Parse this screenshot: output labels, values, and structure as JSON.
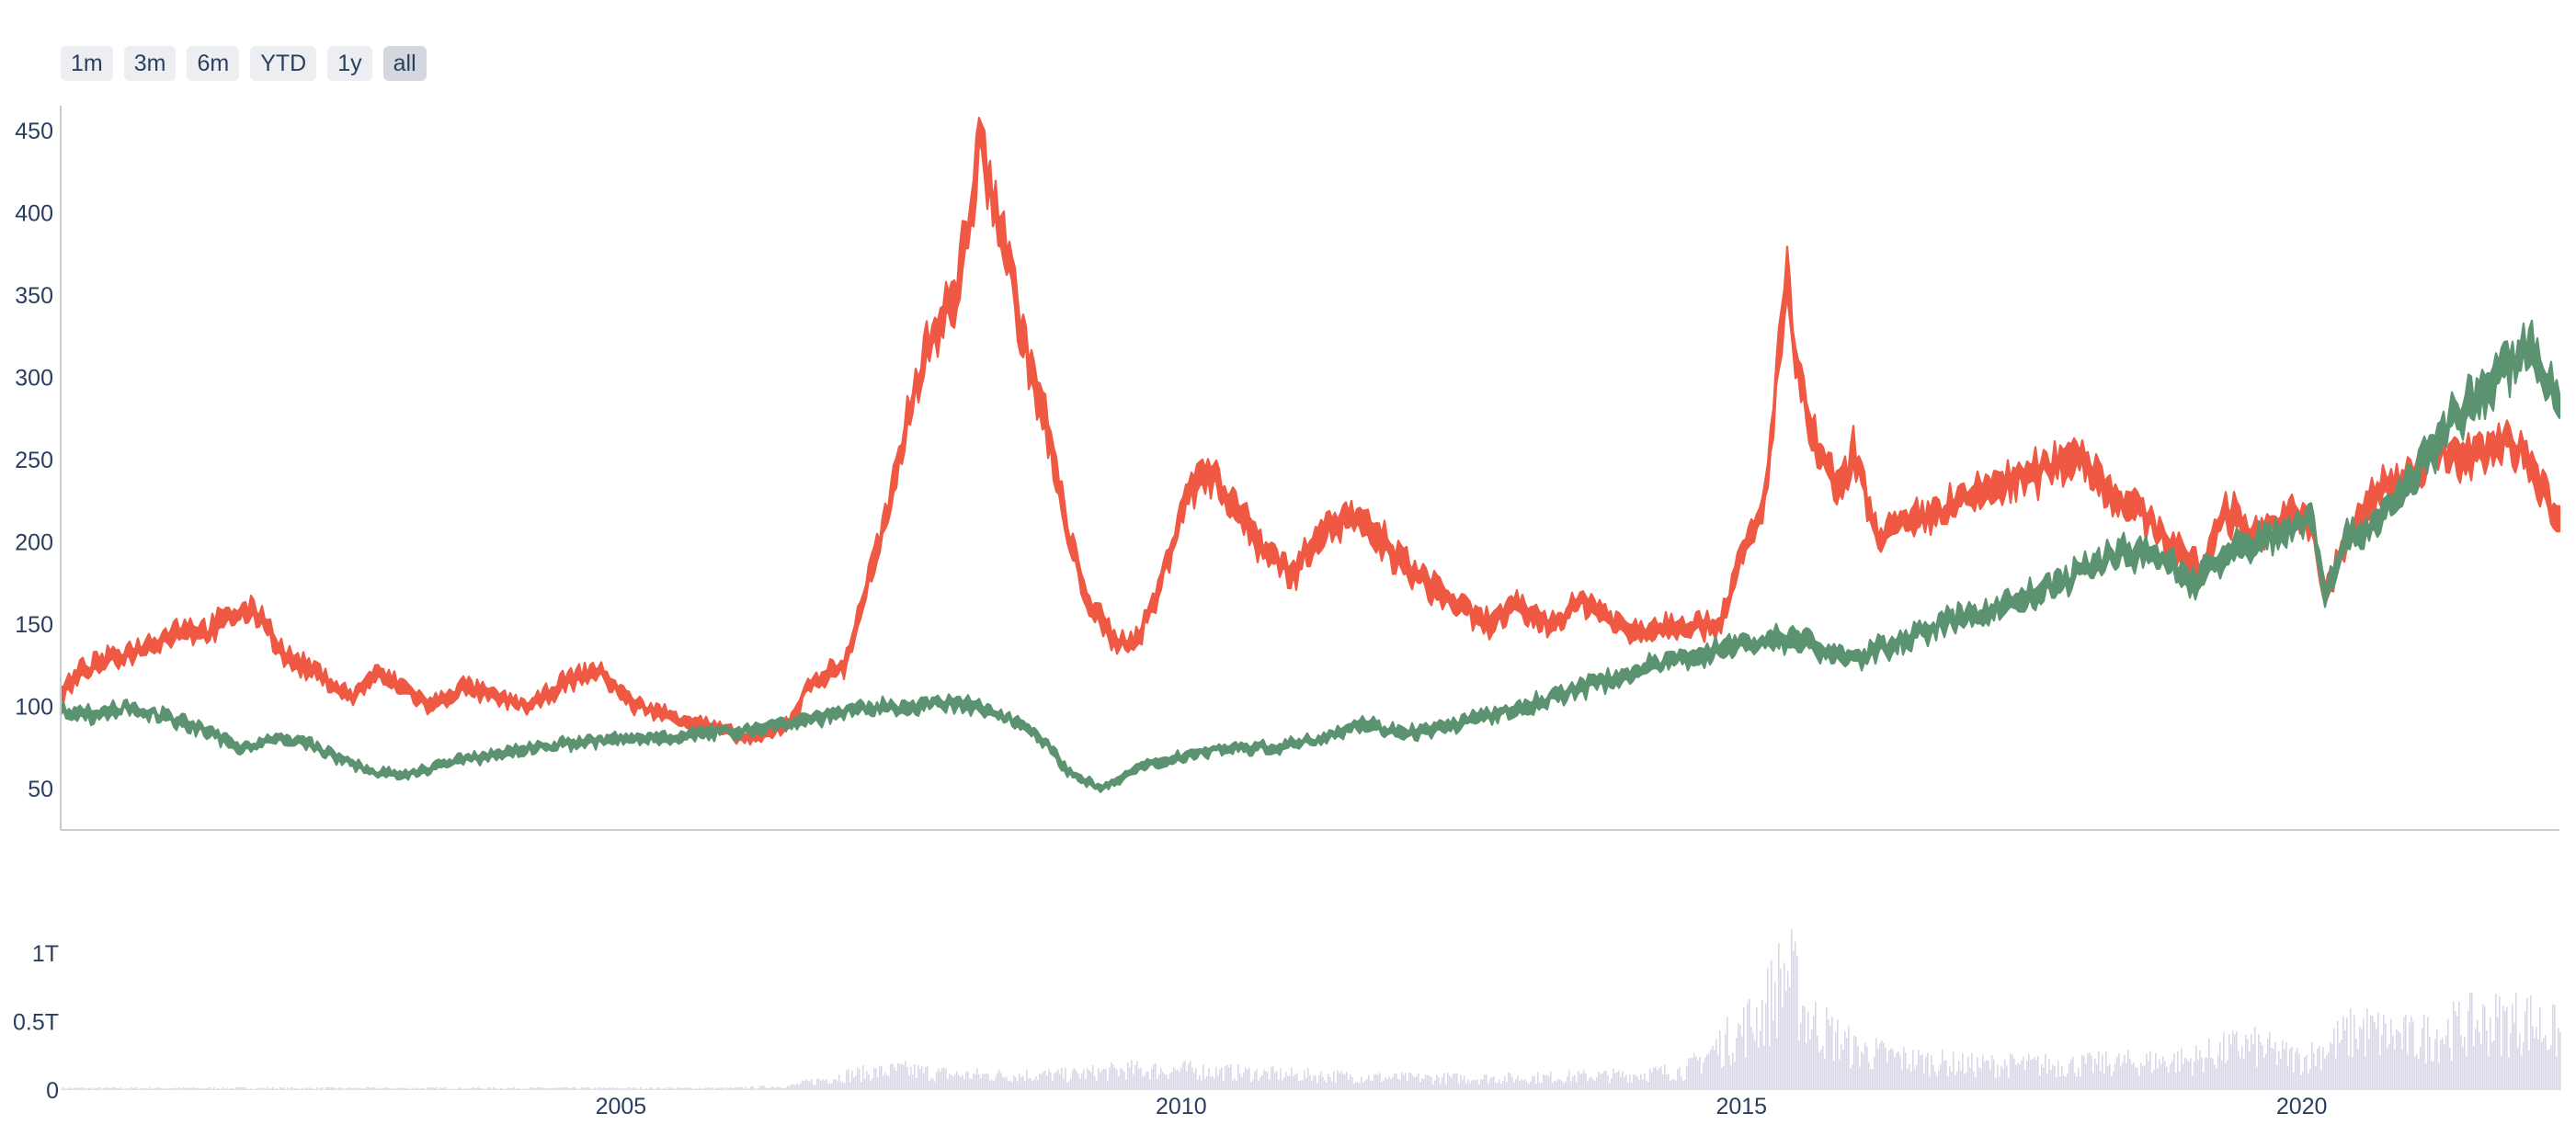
{
  "range_selector": {
    "buttons": [
      {
        "label": "1m",
        "active": false
      },
      {
        "label": "3m",
        "active": false
      },
      {
        "label": "6m",
        "active": false
      },
      {
        "label": "YTD",
        "active": false
      },
      {
        "label": "1y",
        "active": false
      },
      {
        "label": "all",
        "active": true
      }
    ]
  },
  "colors": {
    "increasing": "#5b9370",
    "decreasing": "#ef5943",
    "volume": "#d9d9e6",
    "axis": "#2a3f5f",
    "axis_line": "#c5ccd6"
  },
  "chart_data": [
    {
      "type": "line",
      "subtype": "candlestick",
      "title": "",
      "xlabel": "",
      "ylabel": "",
      "x_range": [
        2000.0,
        2022.3
      ],
      "ylim": [
        25,
        465
      ],
      "y_ticks": [
        50,
        100,
        150,
        200,
        250,
        300,
        350,
        400,
        450
      ],
      "x_ticks": [
        {
          "value": 2005,
          "label": "2005"
        },
        {
          "value": 2010,
          "label": "2010"
        },
        {
          "value": 2015,
          "label": "2015"
        },
        {
          "value": 2020,
          "label": "2020"
        }
      ],
      "grid": false,
      "legend": "none",
      "series": [
        {
          "color": "decreasing",
          "points": [
            [
              2000.0,
              108
            ],
            [
              2000.2,
              122
            ],
            [
              2000.5,
              130
            ],
            [
              2000.8,
              138
            ],
            [
              2001.1,
              148
            ],
            [
              2001.3,
              145
            ],
            [
              2001.6,
              158
            ],
            [
              2001.8,
              155
            ],
            [
              2002.0,
              130
            ],
            [
              2002.3,
              120
            ],
            [
              2002.6,
              105
            ],
            [
              2002.8,
              120
            ],
            [
              2003.1,
              110
            ],
            [
              2003.3,
              100
            ],
            [
              2003.6,
              112
            ],
            [
              2003.9,
              105
            ],
            [
              2004.2,
              100
            ],
            [
              2004.5,
              115
            ],
            [
              2004.8,
              122
            ],
            [
              2005.1,
              102
            ],
            [
              2005.4,
              95
            ],
            [
              2005.7,
              90
            ],
            [
              2006.0,
              83
            ],
            [
              2006.2,
              80
            ],
            [
              2006.5,
              90
            ],
            [
              2006.7,
              115
            ],
            [
              2007.0,
              125
            ],
            [
              2007.2,
              175
            ],
            [
              2007.4,
              220
            ],
            [
              2007.6,
              290
            ],
            [
              2007.8,
              330
            ],
            [
              2008.0,
              350
            ],
            [
              2008.2,
              440
            ],
            [
              2008.4,
              390
            ],
            [
              2008.6,
              320
            ],
            [
              2008.8,
              270
            ],
            [
              2009.0,
              200
            ],
            [
              2009.2,
              160
            ],
            [
              2009.4,
              140
            ],
            [
              2009.6,
              140
            ],
            [
              2009.8,
              170
            ],
            [
              2010.0,
              220
            ],
            [
              2010.2,
              245
            ],
            [
              2010.4,
              230
            ],
            [
              2010.7,
              200
            ],
            [
              2011.0,
              180
            ],
            [
              2011.2,
              205
            ],
            [
              2011.5,
              215
            ],
            [
              2011.8,
              200
            ],
            [
              2012.0,
              185
            ],
            [
              2012.3,
              170
            ],
            [
              2012.7,
              150
            ],
            [
              2013.0,
              160
            ],
            [
              2013.3,
              150
            ],
            [
              2013.6,
              165
            ],
            [
              2014.0,
              145
            ],
            [
              2014.4,
              150
            ],
            [
              2014.8,
              150
            ],
            [
              2015.0,
              190
            ],
            [
              2015.2,
              220
            ],
            [
              2015.4,
              360
            ],
            [
              2015.5,
              300
            ],
            [
              2015.7,
              250
            ],
            [
              2015.9,
              230
            ],
            [
              2016.0,
              255
            ],
            [
              2016.2,
              205
            ],
            [
              2016.5,
              210
            ],
            [
              2016.8,
              220
            ],
            [
              2017.0,
              225
            ],
            [
              2017.3,
              235
            ],
            [
              2017.6,
              240
            ],
            [
              2018.0,
              255
            ],
            [
              2018.3,
              230
            ],
            [
              2018.6,
              215
            ],
            [
              2018.9,
              195
            ],
            [
              2019.1,
              180
            ],
            [
              2019.3,
              220
            ],
            [
              2019.6,
              205
            ],
            [
              2019.9,
              215
            ],
            [
              2020.1,
              210
            ],
            [
              2020.2,
              165
            ],
            [
              2020.4,
              200
            ],
            [
              2020.6,
              225
            ],
            [
              2020.9,
              240
            ],
            [
              2021.2,
              255
            ],
            [
              2021.5,
              250
            ],
            [
              2021.8,
              260
            ],
            [
              2022.0,
              255
            ],
            [
              2022.2,
              225
            ],
            [
              2022.3,
              210
            ]
          ]
        },
        {
          "color": "increasing",
          "points": [
            [
              2000.0,
              98
            ],
            [
              2000.3,
              95
            ],
            [
              2000.6,
              100
            ],
            [
              2001.0,
              92
            ],
            [
              2001.3,
              85
            ],
            [
              2001.6,
              75
            ],
            [
              2001.9,
              80
            ],
            [
              2002.2,
              78
            ],
            [
              2002.5,
              68
            ],
            [
              2002.8,
              60
            ],
            [
              2003.1,
              58
            ],
            [
              2003.4,
              65
            ],
            [
              2003.8,
              70
            ],
            [
              2004.2,
              75
            ],
            [
              2004.6,
              78
            ],
            [
              2005.0,
              80
            ],
            [
              2005.5,
              82
            ],
            [
              2006.0,
              85
            ],
            [
              2006.5,
              90
            ],
            [
              2007.0,
              97
            ],
            [
              2007.5,
              100
            ],
            [
              2008.0,
              102
            ],
            [
              2008.4,
              95
            ],
            [
              2008.7,
              85
            ],
            [
              2009.0,
              60
            ],
            [
              2009.3,
              50
            ],
            [
              2009.6,
              62
            ],
            [
              2010.0,
              70
            ],
            [
              2010.4,
              75
            ],
            [
              2010.8,
              75
            ],
            [
              2011.2,
              80
            ],
            [
              2011.6,
              90
            ],
            [
              2011.9,
              85
            ],
            [
              2012.2,
              85
            ],
            [
              2012.6,
              92
            ],
            [
              2013.0,
              98
            ],
            [
              2013.5,
              110
            ],
            [
              2014.0,
              120
            ],
            [
              2014.5,
              130
            ],
            [
              2015.0,
              138
            ],
            [
              2015.5,
              142
            ],
            [
              2015.7,
              135
            ],
            [
              2016.0,
              128
            ],
            [
              2016.4,
              140
            ],
            [
              2016.8,
              150
            ],
            [
              2017.2,
              158
            ],
            [
              2017.6,
              168
            ],
            [
              2018.0,
              180
            ],
            [
              2018.4,
              195
            ],
            [
              2018.8,
              190
            ],
            [
              2019.0,
              175
            ],
            [
              2019.4,
              195
            ],
            [
              2019.8,
              205
            ],
            [
              2020.1,
              215
            ],
            [
              2020.2,
              170
            ],
            [
              2020.4,
              200
            ],
            [
              2020.7,
              215
            ],
            [
              2021.0,
              240
            ],
            [
              2021.3,
              270
            ],
            [
              2021.6,
              290
            ],
            [
              2021.9,
              310
            ],
            [
              2022.0,
              320
            ],
            [
              2022.2,
              300
            ],
            [
              2022.3,
              290
            ]
          ]
        }
      ]
    },
    {
      "type": "bar",
      "title": "",
      "xlabel": "",
      "ylabel": "",
      "ylim": [
        0,
        1.25
      ],
      "y_ticks": [
        {
          "value": 0,
          "label": "0"
        },
        {
          "value": 0.5,
          "label": "0.5T"
        },
        {
          "value": 1,
          "label": "1T"
        }
      ],
      "unit": "T",
      "grid": false,
      "legend": "none",
      "volume_envelope": [
        [
          2000.0,
          0.02
        ],
        [
          2003.0,
          0.02
        ],
        [
          2006.0,
          0.02
        ],
        [
          2006.5,
          0.04
        ],
        [
          2007.0,
          0.15
        ],
        [
          2007.5,
          0.2
        ],
        [
          2008.0,
          0.15
        ],
        [
          2009.0,
          0.15
        ],
        [
          2009.5,
          0.2
        ],
        [
          2010.0,
          0.2
        ],
        [
          2011.0,
          0.15
        ],
        [
          2012.0,
          0.12
        ],
        [
          2013.0,
          0.12
        ],
        [
          2014.0,
          0.15
        ],
        [
          2014.5,
          0.2
        ],
        [
          2015.0,
          0.6
        ],
        [
          2015.2,
          0.8
        ],
        [
          2015.4,
          1.2
        ],
        [
          2015.6,
          0.7
        ],
        [
          2016.0,
          0.4
        ],
        [
          2016.5,
          0.3
        ],
        [
          2017.0,
          0.25
        ],
        [
          2018.0,
          0.25
        ],
        [
          2019.0,
          0.3
        ],
        [
          2019.5,
          0.45
        ],
        [
          2020.0,
          0.3
        ],
        [
          2020.5,
          0.6
        ],
        [
          2021.0,
          0.5
        ],
        [
          2021.5,
          0.65
        ],
        [
          2022.0,
          0.7
        ],
        [
          2022.3,
          0.55
        ]
      ]
    }
  ]
}
